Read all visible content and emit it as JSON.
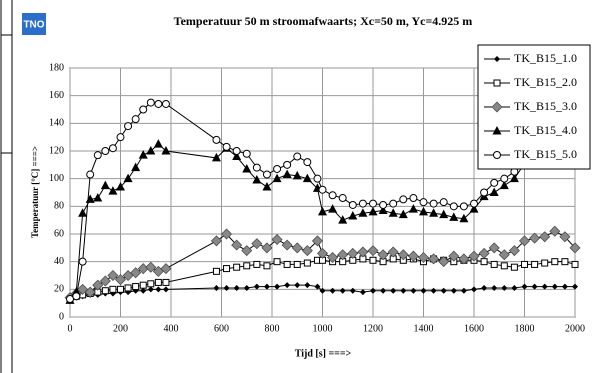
{
  "logo_text": "TNO",
  "chart_data": {
    "type": "line",
    "title": "Temperatuur 50 m  stroomafwaarts; Xc=50 m, Yc=4.925 m",
    "x_label": "Tijd [s] ===>",
    "y_label": "Temperatuur [°C] ===>",
    "x": [
      0,
      25,
      50,
      80,
      110,
      140,
      170,
      200,
      230,
      260,
      290,
      320,
      350,
      380,
      580,
      620,
      660,
      700,
      740,
      780,
      820,
      860,
      900,
      940,
      980,
      1000,
      1040,
      1080,
      1120,
      1160,
      1200,
      1240,
      1280,
      1320,
      1360,
      1400,
      1440,
      1480,
      1520,
      1560,
      1600,
      1640,
      1680,
      1720,
      1760,
      1800,
      1840,
      1880,
      1920,
      1960,
      2000
    ],
    "xlim": [
      0,
      2000
    ],
    "xticks": [
      0,
      200,
      400,
      600,
      800,
      1000,
      1200,
      1400,
      1600,
      1800,
      2000
    ],
    "ylim": [
      0,
      180
    ],
    "yticks": [
      0,
      20,
      40,
      60,
      80,
      100,
      120,
      140,
      160,
      180
    ],
    "grid": true,
    "legend": "upper right",
    "series": [
      {
        "name": "TK_B15_1.0",
        "color": "#000000",
        "marker": "dot",
        "values": [
          13,
          14,
          15,
          16,
          16,
          17,
          17,
          18,
          18,
          19,
          19,
          20,
          20,
          20,
          21,
          21,
          21,
          21,
          22,
          22,
          22,
          23,
          23,
          23,
          22,
          19,
          19,
          19,
          19,
          18,
          19,
          19,
          19,
          19,
          19,
          19,
          19,
          19,
          19,
          19,
          20,
          21,
          21,
          21,
          21,
          22,
          22,
          22,
          22,
          22,
          22
        ]
      },
      {
        "name": "TK_B15_2.0",
        "color": "#000000",
        "marker": "square-open",
        "values": [
          13,
          15,
          16,
          17,
          18,
          19,
          20,
          20,
          21,
          22,
          23,
          24,
          25,
          25,
          33,
          35,
          36,
          37,
          38,
          37,
          40,
          38,
          38,
          39,
          41,
          41,
          40,
          40,
          41,
          42,
          41,
          40,
          42,
          41,
          42,
          40,
          42,
          41,
          40,
          41,
          41,
          40,
          38,
          37,
          36,
          38,
          38,
          39,
          40,
          40,
          38
        ]
      },
      {
        "name": "TK_B15_3.0",
        "color": "#000000",
        "marker": "diamond-gray",
        "values": [
          14,
          17,
          20,
          18,
          23,
          26,
          30,
          27,
          30,
          32,
          35,
          36,
          33,
          35,
          55,
          60,
          52,
          48,
          53,
          50,
          56,
          52,
          50,
          48,
          55,
          46,
          43,
          45,
          46,
          47,
          48,
          45,
          47,
          45,
          44,
          43,
          42,
          40,
          44,
          42,
          44,
          46,
          50,
          45,
          48,
          55,
          57,
          58,
          62,
          58,
          50
        ]
      },
      {
        "name": "TK_B15_4.0",
        "color": "#000000",
        "marker": "triangle",
        "values": [
          12,
          18,
          75,
          85,
          86,
          95,
          91,
          94,
          100,
          108,
          117,
          120,
          125,
          120,
          115,
          122,
          116,
          107,
          99,
          94,
          100,
          103,
          102,
          100,
          93,
          76,
          78,
          70,
          73,
          75,
          76,
          77,
          75,
          74,
          78,
          76,
          75,
          74,
          72,
          71,
          78,
          87,
          90,
          95,
          100,
          111,
          115,
          117,
          118,
          115,
          110
        ]
      },
      {
        "name": "TK_B15_5.0",
        "color": "#000000",
        "marker": "circle-open",
        "values": [
          13,
          15,
          40,
          103,
          117,
          120,
          122,
          130,
          138,
          143,
          150,
          155,
          154,
          154,
          128,
          123,
          120,
          118,
          108,
          103,
          107,
          110,
          116,
          112,
          100,
          92,
          88,
          86,
          81,
          82,
          82,
          81,
          82,
          85,
          86,
          83,
          82,
          83,
          80,
          80,
          82,
          90,
          97,
          100,
          105,
          115,
          122,
          128,
          125,
          120,
          115
        ]
      }
    ]
  }
}
